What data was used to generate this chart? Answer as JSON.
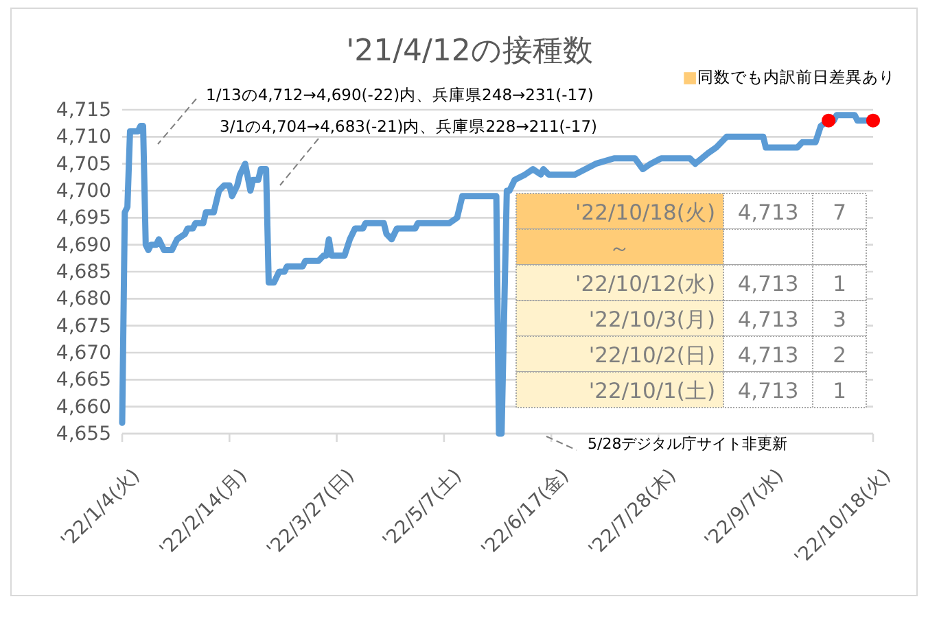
{
  "chart_data": [
    {
      "type": "line",
      "title": "'21/4/12の接種数",
      "ylim": [
        4655,
        4715
      ],
      "yticks": [
        {
          "value": 4655,
          "label": "4,655"
        },
        {
          "value": 4660,
          "label": "4,660"
        },
        {
          "value": 4665,
          "label": "4,665"
        },
        {
          "value": 4670,
          "label": "4,670"
        },
        {
          "value": 4675,
          "label": "4,675"
        },
        {
          "value": 4680,
          "label": "4,680"
        },
        {
          "value": 4685,
          "label": "4,685"
        },
        {
          "value": 4690,
          "label": "4,690"
        },
        {
          "value": 4695,
          "label": "4,695"
        },
        {
          "value": 4700,
          "label": "4,700"
        },
        {
          "value": 4705,
          "label": "4,705"
        },
        {
          "value": 4710,
          "label": "4,710"
        },
        {
          "value": 4715,
          "label": "4,715"
        }
      ],
      "xlim": [
        "2022-01-04",
        "2022-10-18"
      ],
      "xticks": [
        {
          "value": "2022-01-04",
          "label": "'22/1/4(火)"
        },
        {
          "value": "2022-02-14",
          "label": "'22/2/14(月)"
        },
        {
          "value": "2022-03-27",
          "label": "'22/3/27(日)"
        },
        {
          "value": "2022-05-07",
          "label": "'22/5/7(土)"
        },
        {
          "value": "2022-06-17",
          "label": "'22/6/17(金)"
        },
        {
          "value": "2022-07-28",
          "label": "'22/7/28(木)"
        },
        {
          "value": "2022-09-07",
          "label": "'22/9/7(水)"
        },
        {
          "value": "2022-10-18",
          "label": "'22/10/18(火)"
        }
      ],
      "grid": "y",
      "line_style": "solid",
      "series": [
        {
          "type": "line",
          "color": "#5b9bd5",
          "x": [
            "2022-01-04",
            "2022-01-05",
            "2022-01-06",
            "2022-01-07",
            "2022-01-10",
            "2022-01-11",
            "2022-01-12",
            "2022-01-13",
            "2022-01-14",
            "2022-01-15",
            "2022-01-17",
            "2022-01-18",
            "2022-01-20",
            "2022-01-23",
            "2022-01-25",
            "2022-01-28",
            "2022-01-29",
            "2022-01-31",
            "2022-02-01",
            "2022-02-04",
            "2022-02-05",
            "2022-02-08",
            "2022-02-10",
            "2022-02-12",
            "2022-02-14",
            "2022-02-15",
            "2022-02-17",
            "2022-02-18",
            "2022-02-20",
            "2022-02-22",
            "2022-02-23",
            "2022-02-25",
            "2022-02-26",
            "2022-02-28",
            "2022-03-01",
            "2022-03-03",
            "2022-03-05",
            "2022-03-07",
            "2022-03-08",
            "2022-03-14",
            "2022-03-15",
            "2022-03-20",
            "2022-03-22",
            "2022-03-23",
            "2022-03-24",
            "2022-03-25",
            "2022-03-30",
            "2022-04-01",
            "2022-04-03",
            "2022-04-06",
            "2022-04-07",
            "2022-04-14",
            "2022-04-15",
            "2022-04-17",
            "2022-04-19",
            "2022-04-26",
            "2022-04-27",
            "2022-05-09",
            "2022-05-12",
            "2022-05-14",
            "2022-05-27",
            "2022-05-28",
            "2022-05-29",
            "2022-05-31",
            "2022-06-01",
            "2022-06-03",
            "2022-06-07",
            "2022-06-10",
            "2022-06-13",
            "2022-06-14",
            "2022-06-16",
            "2022-06-26",
            "2022-07-04",
            "2022-07-11",
            "2022-07-19",
            "2022-07-22",
            "2022-07-25",
            "2022-07-29",
            "2022-08-09",
            "2022-08-11",
            "2022-08-16",
            "2022-08-19",
            "2022-08-23",
            "2022-09-06",
            "2022-09-07",
            "2022-09-19",
            "2022-09-21",
            "2022-09-26",
            "2022-09-28",
            "2022-10-01",
            "2022-10-03",
            "2022-10-04",
            "2022-10-11",
            "2022-10-12",
            "2022-10-18"
          ],
          "values": [
            4657,
            4696,
            4697,
            4711,
            4711,
            4712,
            4712,
            4690,
            4689,
            4690,
            4690,
            4691,
            4689,
            4689,
            4691,
            4692,
            4693,
            4693,
            4694,
            4694,
            4696,
            4696,
            4700,
            4701,
            4701,
            4699,
            4701,
            4703,
            4705,
            4700,
            4702,
            4702,
            4704,
            4704,
            4683,
            4683,
            4685,
            4685,
            4686,
            4686,
            4687,
            4687,
            4688,
            4688,
            4691,
            4688,
            4688,
            4691,
            4693,
            4693,
            4694,
            4694,
            4692,
            4691,
            4693,
            4693,
            4694,
            4694,
            4695,
            4699,
            4699,
            4655,
            4655,
            4700,
            4700,
            4702,
            4703,
            4704,
            4703,
            4704,
            4703,
            4703,
            4705,
            4706,
            4706,
            4704,
            4705,
            4706,
            4706,
            4705,
            4707,
            4708,
            4710,
            4710,
            4708,
            4708,
            4709,
            4709,
            4712,
            4713,
            4713,
            4714,
            4714,
            4713,
            4713
          ]
        },
        {
          "type": "scatter",
          "color": "#ff0000",
          "marker": "circle",
          "x": [
            "2022-10-01",
            "2022-10-18"
          ],
          "values": [
            4713,
            4713
          ]
        }
      ],
      "annotations": [
        "1/13の4,712→4,690(-22)内、兵庫県248→231(-17)",
        "3/1の4,704→4,683(-21)内、兵庫県228→211(-17)",
        "5/28デジタル庁サイト非更新"
      ]
    },
    {
      "type": "other",
      "legend_title": "■同数でも内訳前日差異あり",
      "categories": [
        "'22/10/18(火)",
        "～",
        "'22/10/12(水)",
        "'22/10/3(月)",
        "'22/10/2(日)",
        "'22/10/1(土)"
      ],
      "colors": [
        "#ffcc77",
        "#ffcc77",
        "#fff2cc",
        "#fff2cc",
        "#fff2cc",
        "#fff2cc"
      ],
      "annotations": [
        "4,713",
        "7",
        "4,713",
        "1",
        "4,713",
        "3",
        "4,713",
        "2",
        "4,713",
        "1"
      ]
    }
  ]
}
